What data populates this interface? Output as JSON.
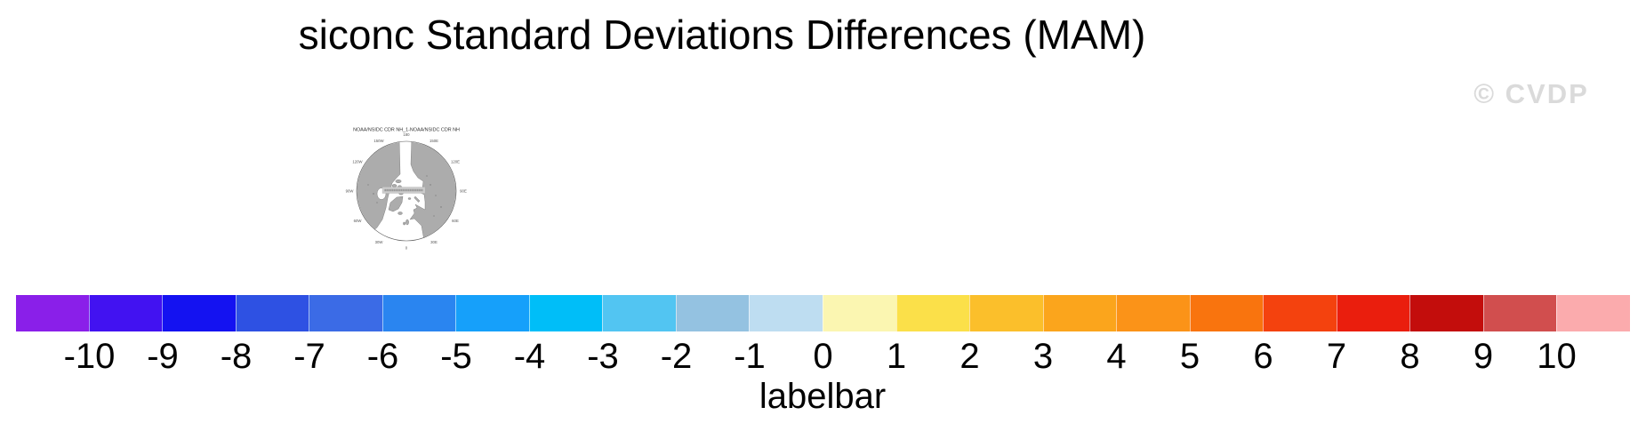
{
  "title": "siconc Standard Deviations Differences (MAM)",
  "watermark": "© CVDP",
  "map": {
    "title": "NOAA/NSIDC CDR NH_1-NOAA/NSIDC CDR NH",
    "lon_labels": [
      "180",
      "150W",
      "150E",
      "120W",
      "120E",
      "90W",
      "90E",
      "60W",
      "60E",
      "30W",
      "30E",
      "0"
    ],
    "land_color": "#acacac",
    "coast_color": "#6e6e6e"
  },
  "labelbar": {
    "title": "labelbar",
    "ticks": [
      "-10",
      "-9",
      "-8",
      "-7",
      "-6",
      "-5",
      "-4",
      "-3",
      "-2",
      "-1",
      "0",
      "1",
      "2",
      "3",
      "4",
      "5",
      "6",
      "7",
      "8",
      "9",
      "10"
    ],
    "colors": [
      "#8A1FE9",
      "#4212F1",
      "#1412F1",
      "#2E51E3",
      "#3B6BE6",
      "#2A85F0",
      "#16A0FA",
      "#00BEF8",
      "#52C5F2",
      "#94C2E1",
      "#BEDDF1",
      "#FBF6B1",
      "#FBE049",
      "#FBBF2B",
      "#FBA51C",
      "#FB9318",
      "#F9740E",
      "#F4420E",
      "#EA1E0D",
      "#C30D0C",
      "#D14E4E",
      "#FBABAD"
    ]
  },
  "chart_data": {
    "type": "colorbar",
    "title": "siconc Standard Deviations Differences (MAM)",
    "panel_title": "NOAA/NSIDC CDR NH_1-NOAA/NSIDC CDR NH",
    "colorbar_label": "labelbar",
    "tick_values": [
      -10,
      -9,
      -8,
      -7,
      -6,
      -5,
      -4,
      -3,
      -2,
      -1,
      0,
      1,
      2,
      3,
      4,
      5,
      6,
      7,
      8,
      9,
      10
    ],
    "box_colors": [
      "#8A1FE9",
      "#4212F1",
      "#1412F1",
      "#2E51E3",
      "#3B6BE6",
      "#2A85F0",
      "#16A0FA",
      "#00BEF8",
      "#52C5F2",
      "#94C2E1",
      "#BEDDF1",
      "#FBF6B1",
      "#FBE049",
      "#FBBF2B",
      "#FBA51C",
      "#FB9318",
      "#F9740E",
      "#F4420E",
      "#EA1E0D",
      "#C30D0C",
      "#D14E4E",
      "#FBABAD"
    ],
    "layout": "horizontal colorbar legend with labels at interior box boundaries; small north-polar stereographic map panel at upper left; grey copyright watermark at upper right"
  }
}
